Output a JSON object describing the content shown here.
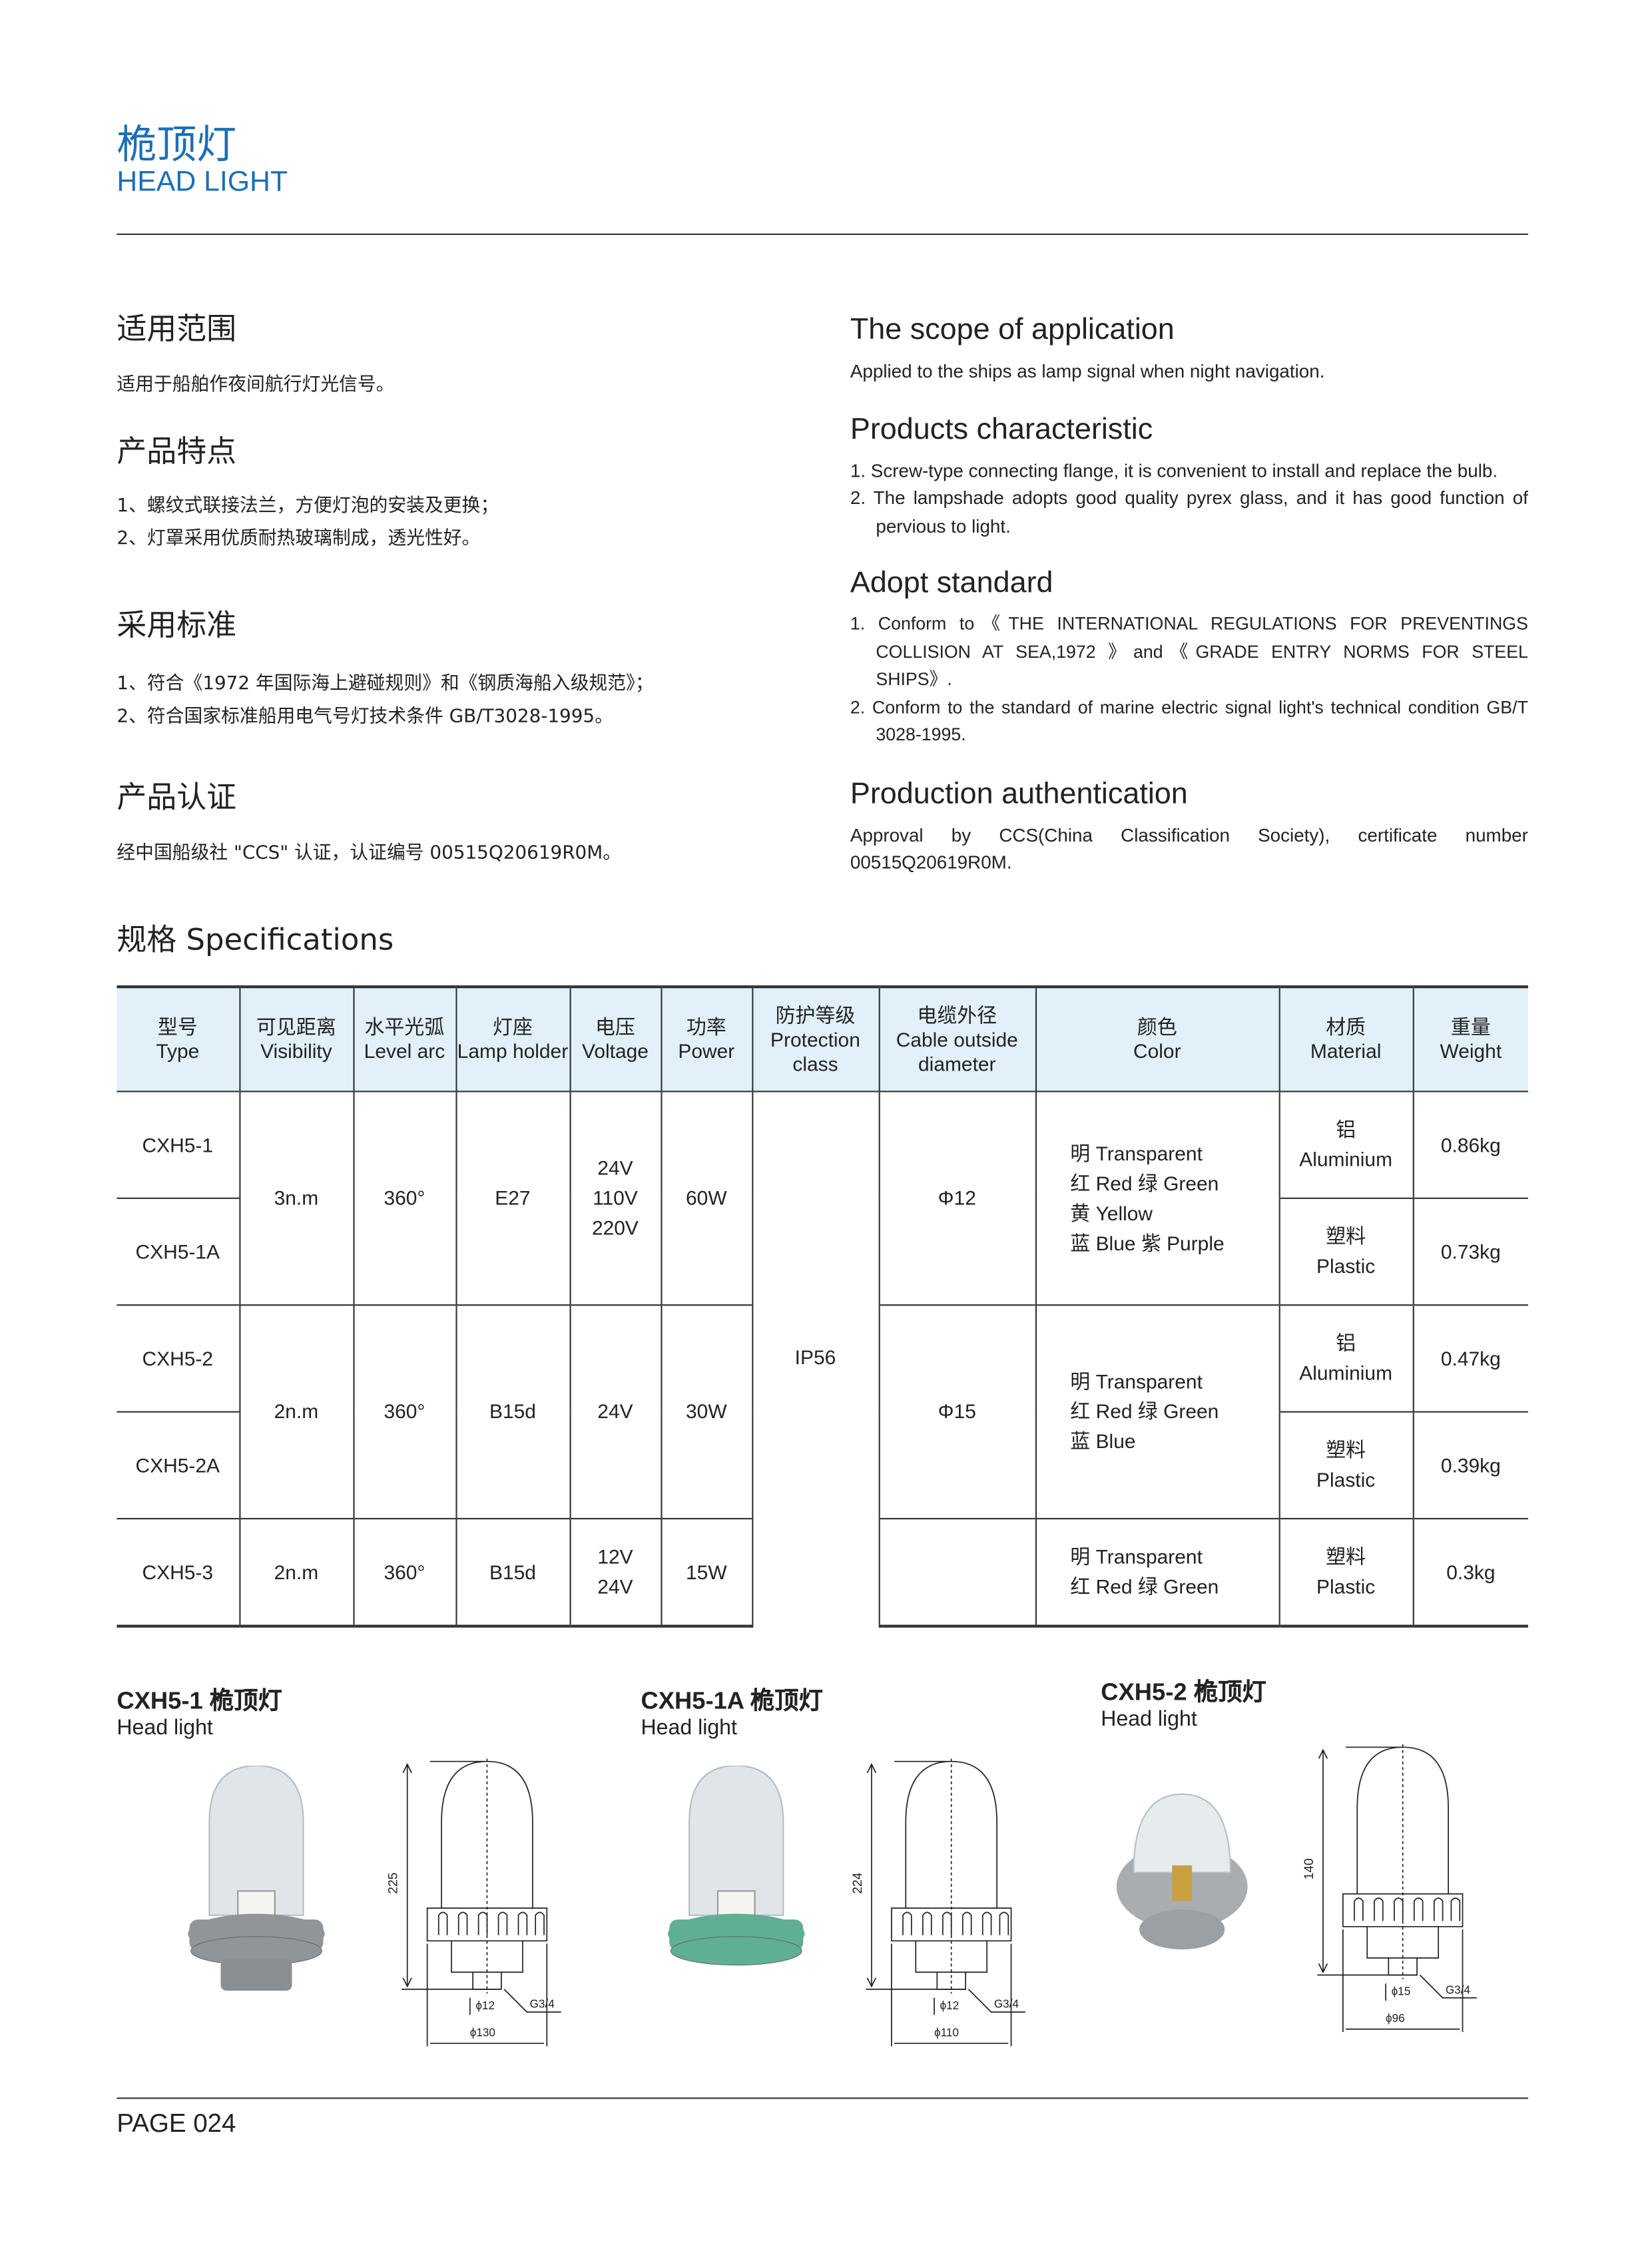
{
  "header": {
    "title_cn": "桅顶灯",
    "title_en": "HEAD LIGHT"
  },
  "left": {
    "scope": {
      "heading": "适用范围",
      "text": "适用于船舶作夜间航行灯光信号。"
    },
    "features": {
      "heading": "产品特点",
      "items": [
        "1、螺纹式联接法兰，方便灯泡的安装及更换；",
        "2、灯罩采用优质耐热玻璃制成，透光性好。"
      ]
    },
    "standard": {
      "heading": "采用标准",
      "items": [
        "1、符合《1972 年国际海上避碰规则》和《钢质海船入级规范》；",
        "2、符合国家标准船用电气号灯技术条件 GB/T3028-1995。"
      ]
    },
    "cert": {
      "heading": "产品认证",
      "text": "经中国船级社 \"CCS\" 认证，认证编号 00515Q20619R0M。"
    }
  },
  "right": {
    "scope": {
      "heading": "The scope of application",
      "text": "Applied to the ships as lamp signal when night navigation."
    },
    "features": {
      "heading": "Products characteristic",
      "items": [
        "1. Screw-type connecting flange, it is convenient to install and replace the bulb.",
        "2. The lampshade adopts good quality pyrex glass, and it has good function of pervious to light."
      ]
    },
    "standard": {
      "heading": "Adopt standard",
      "items": [
        "1. Conform to《THE INTERNATIONAL REGULATIONS FOR PREVENTINGS COLLISION AT SEA,1972 》and《GRADE ENTRY NORMS FOR STEEL SHIPS》.",
        "2. Conform to the standard of marine electric signal light's technical condition GB/T 3028-1995."
      ]
    },
    "cert": {
      "heading": "Production authentication",
      "text": "Approval by CCS(China Classification Society), certificate number 00515Q20619R0M."
    }
  },
  "specs": {
    "heading": "规格 Specifications",
    "columns": [
      {
        "cn": "型号",
        "en": "Type"
      },
      {
        "cn": "可见距离",
        "en": "Visibility"
      },
      {
        "cn": "水平光弧",
        "en": "Level arc"
      },
      {
        "cn": "灯座",
        "en": "Lamp holder"
      },
      {
        "cn": "电压",
        "en": "Voltage"
      },
      {
        "cn": "功率",
        "en": "Power"
      },
      {
        "cn": "防护等级",
        "en": "Protection class"
      },
      {
        "cn": "电缆外径",
        "en": "Cable outside diameter"
      },
      {
        "cn": "颜色",
        "en": "Color"
      },
      {
        "cn": "材质",
        "en": "Material"
      },
      {
        "cn": "重量",
        "en": "Weight"
      }
    ],
    "groups": [
      {
        "visibility": "3n.m",
        "arc": "360°",
        "holder": "E27",
        "voltage": [
          "24V",
          "110V",
          "220V"
        ],
        "power": "60W",
        "cable": "Φ12",
        "colors": [
          "明 Transparent",
          "红 Red  绿 Green",
          "黄 Yellow",
          "蓝 Blue 紫 Purple"
        ],
        "models": [
          {
            "type": "CXH5-1",
            "material_cn": "铝",
            "material_en": "Aluminium",
            "weight": "0.86kg"
          },
          {
            "type": "CXH5-1A",
            "material_cn": "塑料",
            "material_en": "Plastic",
            "weight": "0.73kg"
          }
        ]
      },
      {
        "visibility": "2n.m",
        "arc": "360°",
        "holder": "B15d",
        "voltage": [
          "24V"
        ],
        "power": "30W",
        "cable": "Φ15",
        "colors": [
          "明 Transparent",
          "红 Red  绿 Green",
          "蓝 Blue"
        ],
        "models": [
          {
            "type": "CXH5-2",
            "material_cn": "铝",
            "material_en": "Aluminium",
            "weight": "0.47kg"
          },
          {
            "type": "CXH5-2A",
            "material_cn": "塑料",
            "material_en": "Plastic",
            "weight": "0.39kg"
          }
        ]
      },
      {
        "visibility": "2n.m",
        "arc": "360°",
        "holder": "B15d",
        "voltage": [
          "12V",
          "24V"
        ],
        "power": "15W",
        "cable": "",
        "colors": [
          "明 Transparent",
          "红 Red  绿 Green"
        ],
        "models": [
          {
            "type": "CXH5-3",
            "material_cn": "塑料",
            "material_en": "Plastic",
            "weight": "0.3kg"
          }
        ]
      }
    ],
    "protection": "IP56"
  },
  "products": [
    {
      "model": "CXH5-1 桅顶灯",
      "sub": "Head light",
      "height": "225",
      "neck": "ϕ12",
      "thread": "G3/4",
      "diameter": "ϕ130",
      "base_color": "#8f9599"
    },
    {
      "model": "CXH5-1A 桅顶灯",
      "sub": "Head light",
      "height": "224",
      "neck": "ϕ12",
      "thread": "G3/4",
      "diameter": "ϕ110",
      "base_color": "#5fae96"
    },
    {
      "model": "CXH5-2 桅顶灯",
      "sub": "Head light",
      "height": "140",
      "neck": "ϕ15",
      "thread": "G3/4",
      "diameter": "ϕ96",
      "base_color": "#a9adb0"
    }
  ],
  "footer": {
    "page": "PAGE 024"
  },
  "colors": {
    "accent": "#1a6fb8",
    "table_header_bg": "#e2f0fa"
  }
}
